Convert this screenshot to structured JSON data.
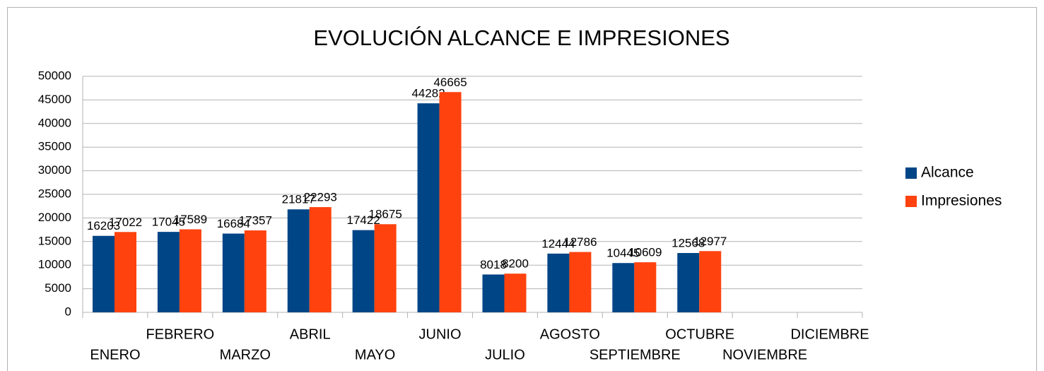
{
  "chart_data": {
    "type": "bar",
    "title": "EVOLUCIÓN ALCANCE E IMPRESIONES",
    "categories": [
      "ENERO",
      "FEBRERO",
      "MARZO",
      "ABRIL",
      "MAYO",
      "JUNIO",
      "JULIO",
      "AGOSTO",
      "SEPTIEMBRE",
      "OCTUBRE",
      "NOVIEMBRE",
      "DICIEMBRE"
    ],
    "series": [
      {
        "name": "Alcance",
        "color": "#004586",
        "values": [
          16203,
          17045,
          16684,
          21817,
          17422,
          44282,
          8018,
          12444,
          10445,
          12568,
          null,
          null
        ]
      },
      {
        "name": "Impresiones",
        "color": "#ff420e",
        "values": [
          17022,
          17589,
          17357,
          22293,
          18675,
          46665,
          8200,
          12786,
          10609,
          12977,
          null,
          null
        ]
      }
    ],
    "ylim": [
      0,
      50000
    ],
    "yticks": [
      0,
      5000,
      10000,
      15000,
      20000,
      25000,
      30000,
      35000,
      40000,
      45000,
      50000
    ],
    "grid": true,
    "legend": "right"
  }
}
